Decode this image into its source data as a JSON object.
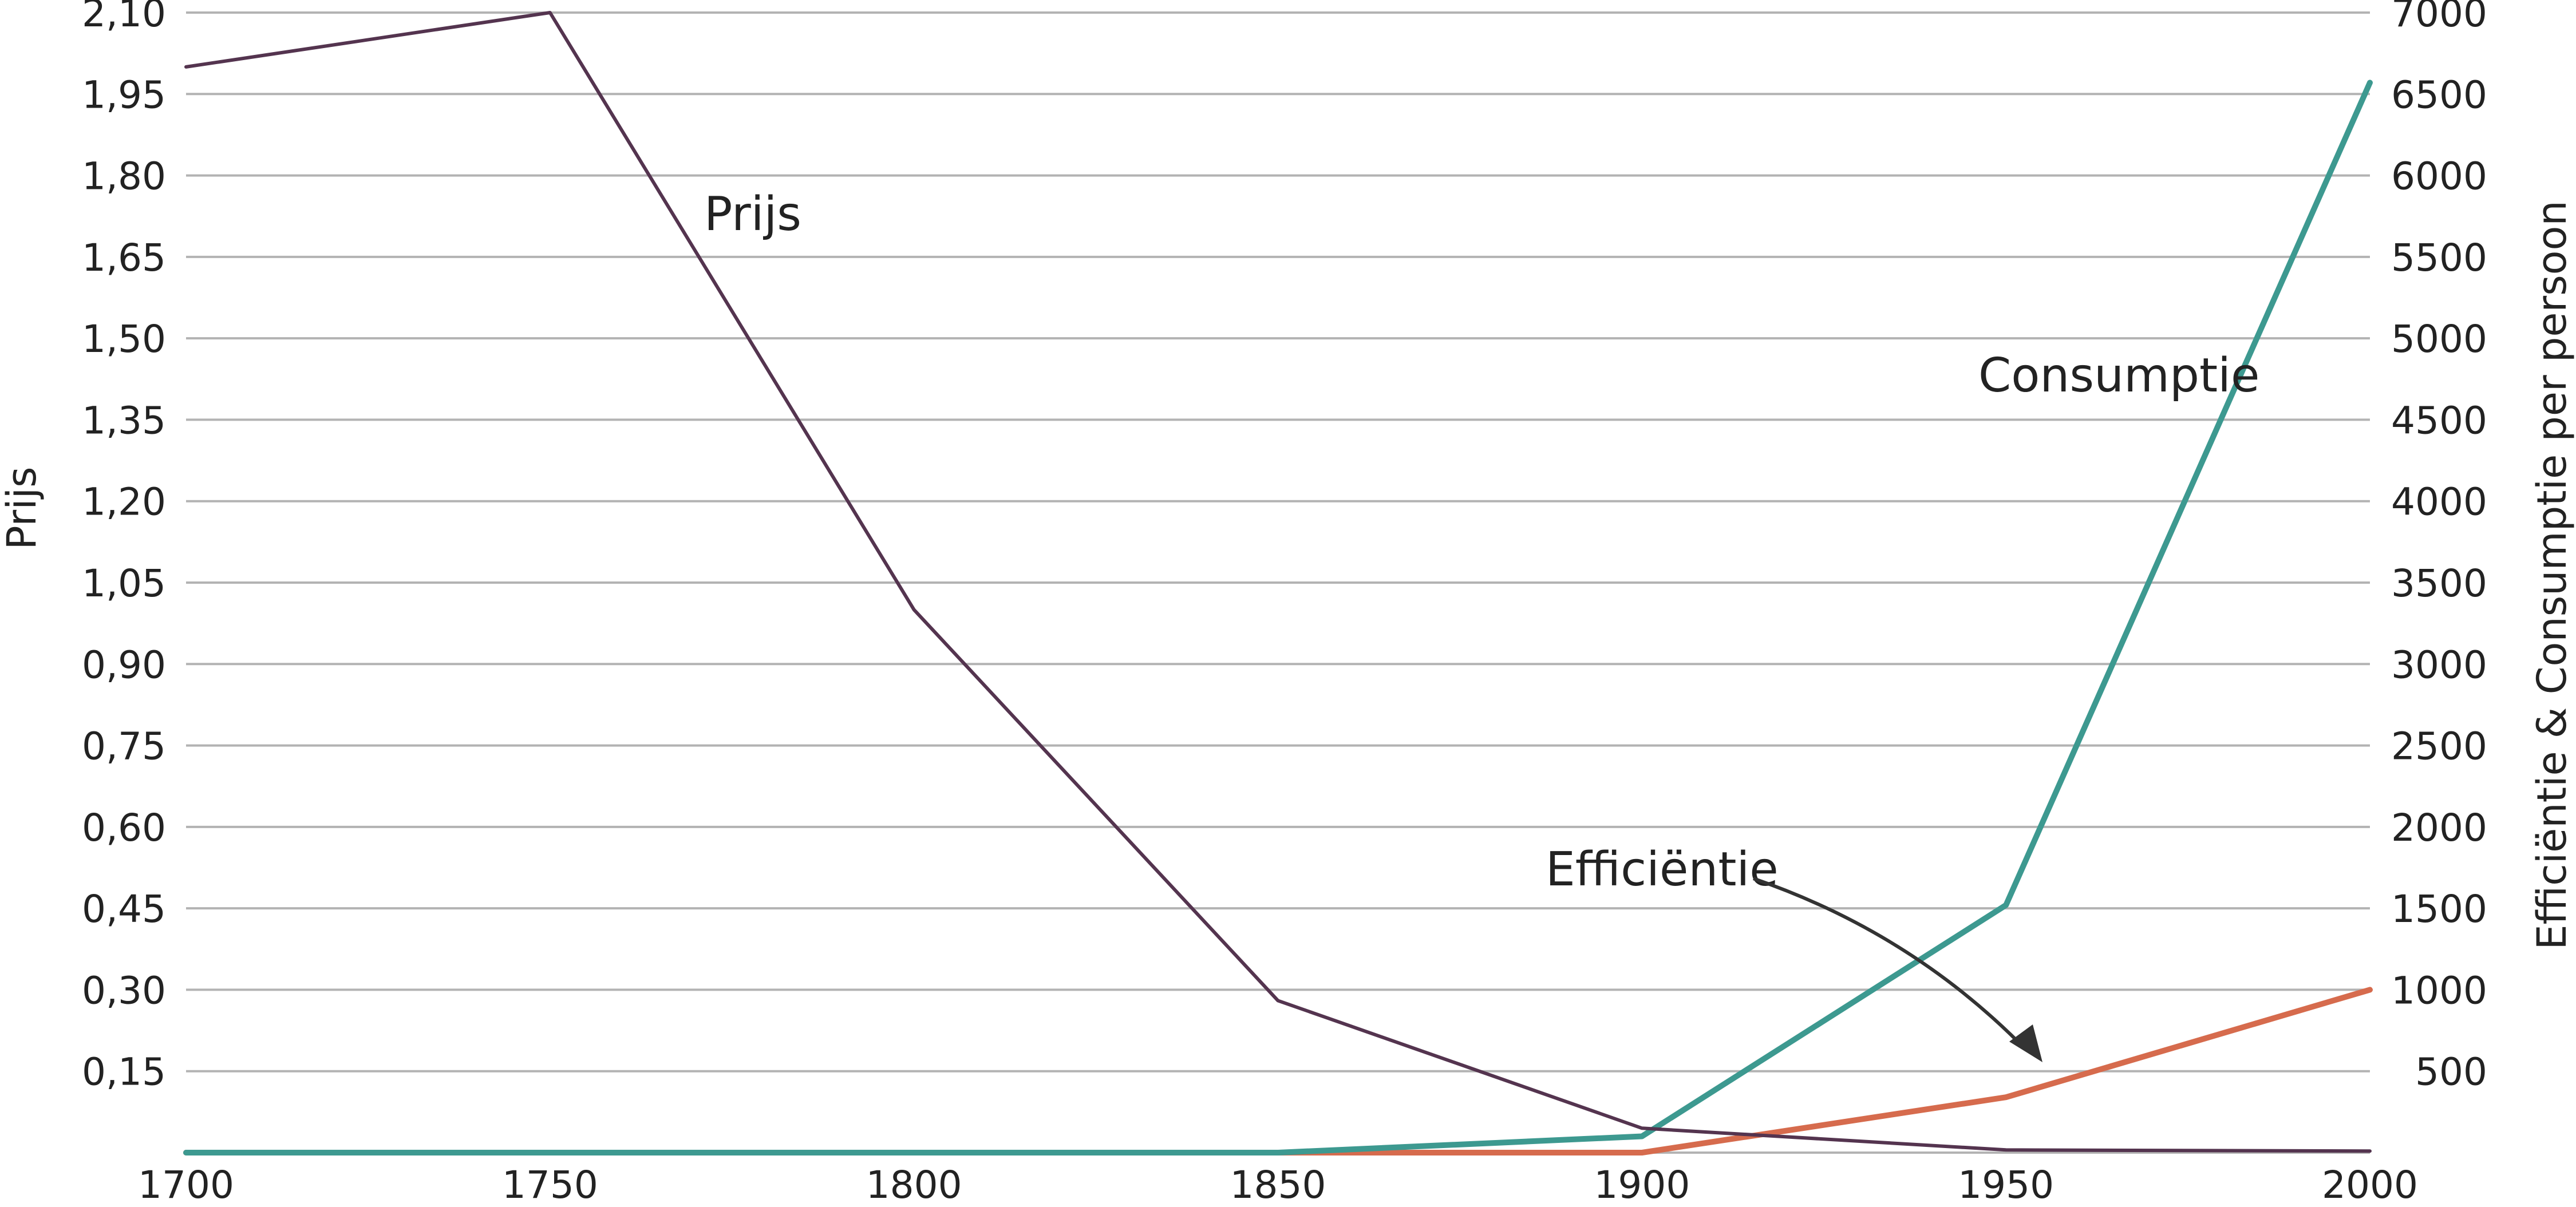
{
  "chart_data": {
    "type": "line",
    "x": [
      1700,
      1750,
      1800,
      1850,
      1900,
      1950,
      2000
    ],
    "xlim": [
      1700,
      2000
    ],
    "x_ticks": [
      "1700",
      "1750",
      "1800",
      "1850",
      "1900",
      "1950",
      "2000"
    ],
    "y_left": {
      "label": "Prijs",
      "ylim": [
        0,
        2.1
      ],
      "ticks": [
        "0,15",
        "0,30",
        "0,45",
        "0,60",
        "0,75",
        "0,90",
        "1,05",
        "1,20",
        "1,35",
        "1,50",
        "1,65",
        "1,80",
        "1,95",
        "2,10"
      ]
    },
    "y_right": {
      "label": "Efficiëntie & Consumptie per persoon",
      "ylim": [
        0,
        7000
      ],
      "ticks": [
        "500",
        "1000",
        "1500",
        "2000",
        "2500",
        "3000",
        "3500",
        "4000",
        "4500",
        "5000",
        "5500",
        "6000",
        "6500",
        "7000"
      ]
    },
    "grid": true,
    "series": [
      {
        "name": "Prijs",
        "axis": "left",
        "color": "#54344f",
        "values": [
          2.0,
          2.1,
          1.0,
          0.28,
          0.045,
          0.005,
          0.003
        ]
      },
      {
        "name": "Consumptie",
        "axis": "right",
        "color": "#3d9990",
        "values": [
          0,
          0,
          0,
          0,
          100,
          1520,
          6570
        ]
      },
      {
        "name": "Efficiëntie",
        "axis": "right",
        "color": "#d66b4d",
        "values": [
          0,
          0,
          0,
          0,
          0,
          340,
          1000
        ]
      }
    ]
  }
}
